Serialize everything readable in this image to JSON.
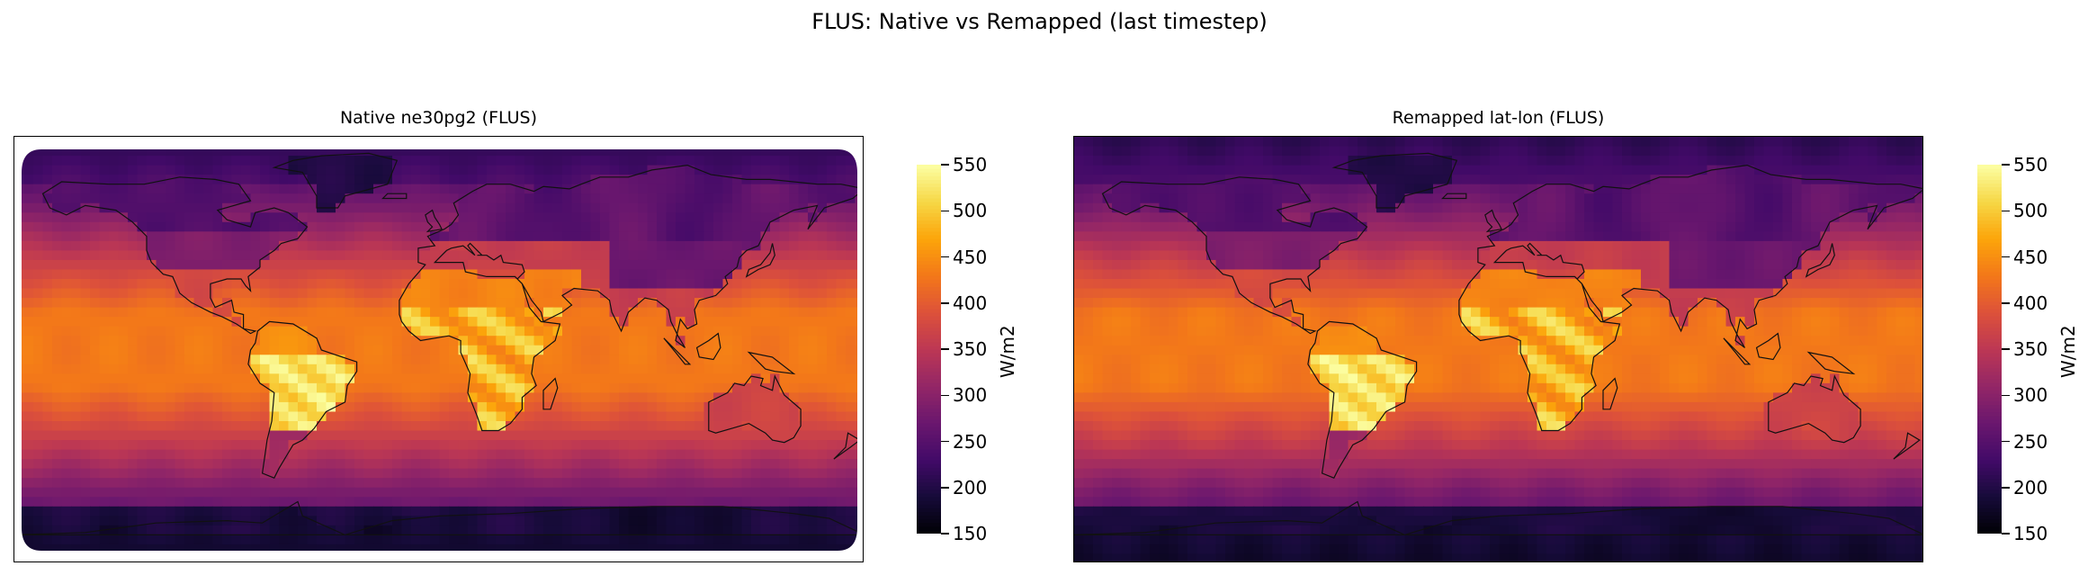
{
  "figure": {
    "suptitle": "FLUS: Native vs Remapped (last timestep)"
  },
  "chart_data": [
    {
      "type": "heatmap",
      "title": "Native ne30pg2 (FLUS)",
      "projection": "PlateCarree global map with coastlines",
      "colormap": "inferno",
      "colorbar": {
        "label": "W/m2",
        "ticks": [
          150,
          200,
          250,
          300,
          350,
          400,
          450,
          500,
          550
        ],
        "range": [
          150,
          550
        ]
      },
      "approx_values": {
        "antarctica": 190,
        "arctic": 230,
        "southern_ocean": 280,
        "midlatitude_ocean": 370,
        "tropical_ocean": 430,
        "sahara_africa": 500,
        "south_america_interior": 540,
        "siberia": 250
      }
    },
    {
      "type": "heatmap",
      "title": "Remapped lat-lon (FLUS)",
      "projection": "PlateCarree global map with coastlines",
      "colormap": "inferno",
      "colorbar": {
        "label": "W/m2",
        "ticks": [
          150,
          200,
          250,
          300,
          350,
          400,
          450,
          500,
          550
        ],
        "range": [
          150,
          550
        ]
      },
      "approx_values": {
        "antarctica": 190,
        "arctic": 230,
        "southern_ocean": 280,
        "midlatitude_ocean": 370,
        "tropical_ocean": 430,
        "sahara_africa": 500,
        "south_america_interior": 540,
        "siberia": 250
      }
    }
  ]
}
